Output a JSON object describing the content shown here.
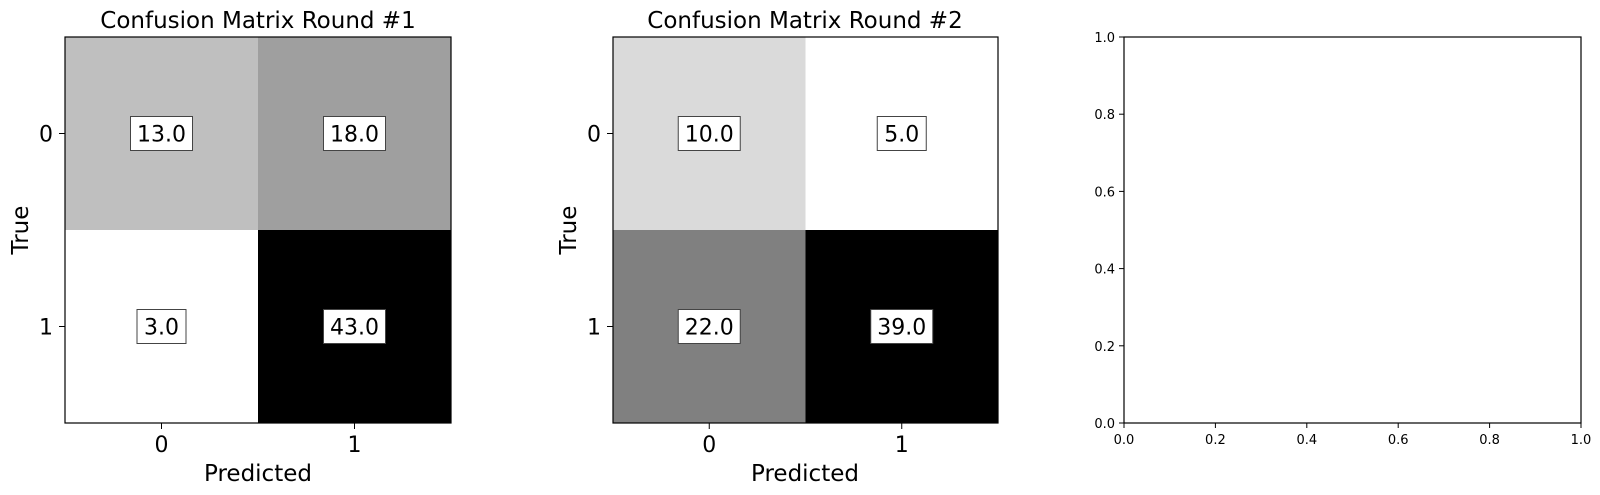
{
  "chart_data": [
    {
      "type": "heatmap",
      "title": "Confusion Matrix Round #1",
      "xlabel": "Predicted",
      "ylabel": "True",
      "x_categories": [
        "0",
        "1"
      ],
      "y_categories": [
        "0",
        "1"
      ],
      "values": [
        [
          13.0,
          18.0
        ],
        [
          3.0,
          43.0
        ]
      ],
      "value_labels": [
        [
          "13.0",
          "18.0"
        ],
        [
          "3.0",
          "43.0"
        ]
      ],
      "colormap": "gray_r"
    },
    {
      "type": "heatmap",
      "title": "Confusion Matrix Round #2",
      "xlabel": "Predicted",
      "ylabel": "True",
      "x_categories": [
        "0",
        "1"
      ],
      "y_categories": [
        "0",
        "1"
      ],
      "values": [
        [
          10.0,
          5.0
        ],
        [
          22.0,
          39.0
        ]
      ],
      "value_labels": [
        [
          "10.0",
          "5.0"
        ],
        [
          "22.0",
          "39.0"
        ]
      ],
      "colormap": "gray_r"
    },
    {
      "type": "scatter",
      "title": "",
      "xlabel": "",
      "ylabel": "",
      "xlim": [
        0.0,
        1.0
      ],
      "ylim": [
        0.0,
        1.0
      ],
      "xticks": [
        "0.0",
        "0.2",
        "0.4",
        "0.6",
        "0.8",
        "1.0"
      ],
      "yticks": [
        "0.0",
        "0.2",
        "0.4",
        "0.6",
        "0.8",
        "1.0"
      ],
      "series": []
    }
  ]
}
